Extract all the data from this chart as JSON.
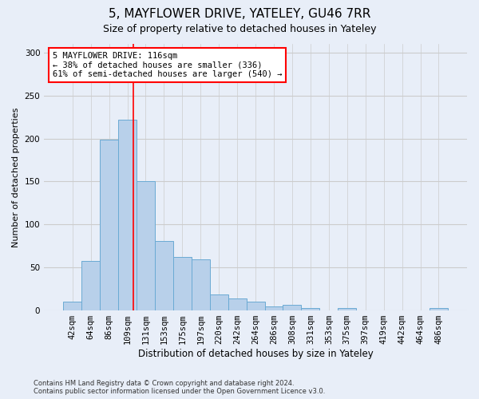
{
  "title": "5, MAYFLOWER DRIVE, YATELEY, GU46 7RR",
  "subtitle": "Size of property relative to detached houses in Yateley",
  "xlabel": "Distribution of detached houses by size in Yateley",
  "ylabel": "Number of detached properties",
  "footer_line1": "Contains HM Land Registry data © Crown copyright and database right 2024.",
  "footer_line2": "Contains public sector information licensed under the Open Government Licence v3.0.",
  "bin_labels": [
    "42sqm",
    "64sqm",
    "86sqm",
    "109sqm",
    "131sqm",
    "153sqm",
    "175sqm",
    "197sqm",
    "220sqm",
    "242sqm",
    "264sqm",
    "286sqm",
    "308sqm",
    "331sqm",
    "353sqm",
    "375sqm",
    "397sqm",
    "419sqm",
    "442sqm",
    "464sqm",
    "486sqm"
  ],
  "bar_heights": [
    10,
    58,
    199,
    222,
    150,
    81,
    62,
    59,
    19,
    14,
    10,
    5,
    7,
    3,
    0,
    3,
    0,
    0,
    0,
    0,
    3
  ],
  "bar_color": "#b8d0ea",
  "bar_edge_color": "#6aaad4",
  "property_line_color": "red",
  "annotation_text": "5 MAYFLOWER DRIVE: 116sqm\n← 38% of detached houses are smaller (336)\n61% of semi-detached houses are larger (540) →",
  "annotation_box_color": "white",
  "annotation_box_edge_color": "red",
  "ylim": [
    0,
    310
  ],
  "yticks": [
    0,
    50,
    100,
    150,
    200,
    250,
    300
  ],
  "grid_color": "#cccccc",
  "background_color": "#e8eef8",
  "title_fontsize": 11,
  "subtitle_fontsize": 9,
  "xlabel_fontsize": 8.5,
  "ylabel_fontsize": 8,
  "tick_fontsize": 7.5,
  "annotation_fontsize": 7.5,
  "footer_fontsize": 6,
  "line_x_index": 3.32
}
